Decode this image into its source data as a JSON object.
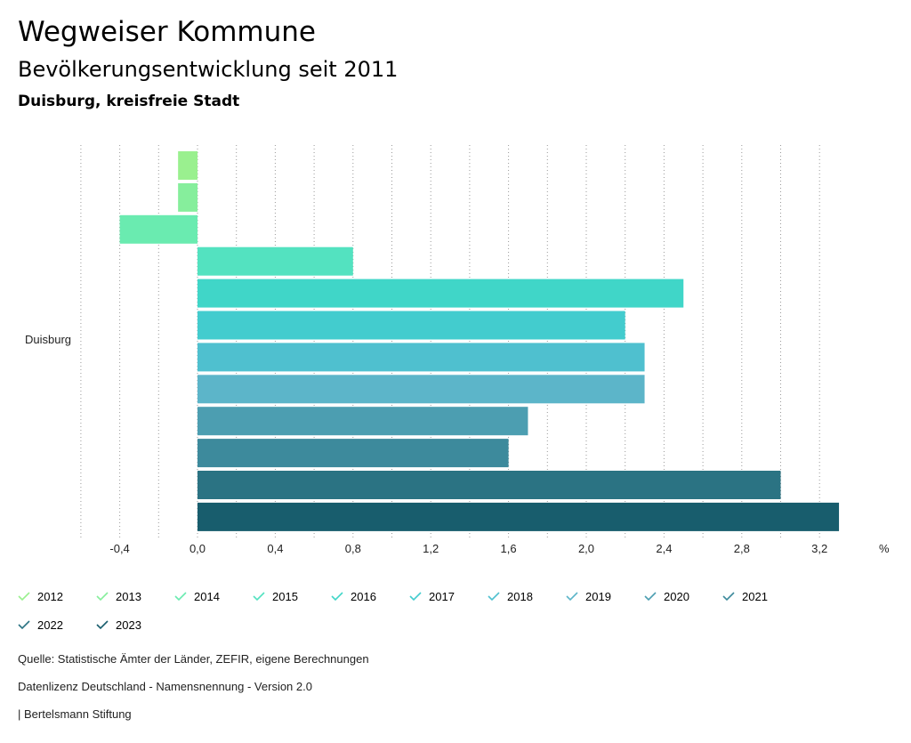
{
  "header": {
    "title": "Wegweiser Kommune",
    "subtitle": "Bevölkerungsentwicklung seit 2011",
    "region": "Duisburg, kreisfreie Stadt"
  },
  "chart_data": {
    "type": "bar",
    "orientation": "horizontal",
    "category": "Duisburg",
    "unit_label": "%",
    "xlim": [
      -0.6,
      3.3
    ],
    "ticks": [
      "-0,4",
      "0,0",
      "0,4",
      "0,8",
      "1,2",
      "1,6",
      "2,0",
      "2,4",
      "2,8",
      "3,2"
    ],
    "tick_values": [
      -0.4,
      0.0,
      0.4,
      0.8,
      1.2,
      1.6,
      2.0,
      2.4,
      2.8,
      3.2
    ],
    "grid": true,
    "series": [
      {
        "name": "2012",
        "value": -0.1,
        "color": "#9af08f"
      },
      {
        "name": "2013",
        "value": -0.1,
        "color": "#86ee9c"
      },
      {
        "name": "2014",
        "value": -0.4,
        "color": "#6aebb0"
      },
      {
        "name": "2015",
        "value": 0.8,
        "color": "#53e2c0"
      },
      {
        "name": "2016",
        "value": 2.5,
        "color": "#40d6c8"
      },
      {
        "name": "2017",
        "value": 2.2,
        "color": "#43ccce"
      },
      {
        "name": "2018",
        "value": 2.3,
        "color": "#4fc0cf"
      },
      {
        "name": "2019",
        "value": 2.3,
        "color": "#5cb5c9"
      },
      {
        "name": "2020",
        "value": 1.7,
        "color": "#4c9eb1"
      },
      {
        "name": "2021",
        "value": 1.6,
        "color": "#3d8a9c"
      },
      {
        "name": "2022",
        "value": 3.0,
        "color": "#2b7383"
      },
      {
        "name": "2023",
        "value": 3.3,
        "color": "#185d6d"
      }
    ]
  },
  "footer": {
    "source": "Quelle: Statistische Ämter der Länder, ZEFIR, eigene Berechnungen",
    "license": "Datenlizenz Deutschland - Namensnennung - Version 2.0",
    "publisher": "| Bertelsmann Stiftung"
  }
}
